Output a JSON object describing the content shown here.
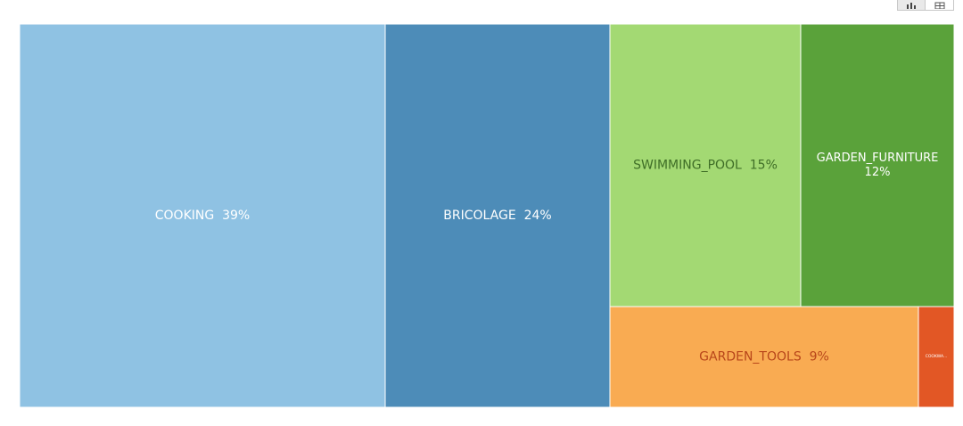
{
  "toolbar": {
    "chart_view_icon": "bar-chart-icon",
    "table_view_icon": "table-icon",
    "active_view": "chart"
  },
  "chart_data": {
    "type": "treemap",
    "items": [
      {
        "name": "COOKING",
        "percent": 39,
        "label": "COOKING  39%",
        "color": "#8fc2e3",
        "text_color": "#ffffff"
      },
      {
        "name": "BRICOLAGE",
        "percent": 24,
        "label": "BRICOLAGE  24%",
        "color": "#4d8cb8",
        "text_color": "#ffffff"
      },
      {
        "name": "SWIMMING_POOL",
        "percent": 15,
        "label": "SWIMMING_POOL  15%",
        "color": "#a3d973",
        "text_color": "#3f6e27"
      },
      {
        "name": "GARDEN_FURNITURE",
        "percent": 12,
        "label_lines": [
          "GARDEN_FURNITURE",
          "12%"
        ],
        "color": "#5aa23a",
        "text_color": "#ffffff"
      },
      {
        "name": "GARDEN_TOOLS",
        "percent": 9,
        "label": "GARDEN_TOOLS  9%",
        "color": "#f9ab52",
        "text_color": "#b8461a"
      },
      {
        "name": "COOKWA...",
        "percent": 1,
        "label": "COOKWA...",
        "color": "#e25725",
        "text_color": "#ffffff"
      }
    ]
  }
}
